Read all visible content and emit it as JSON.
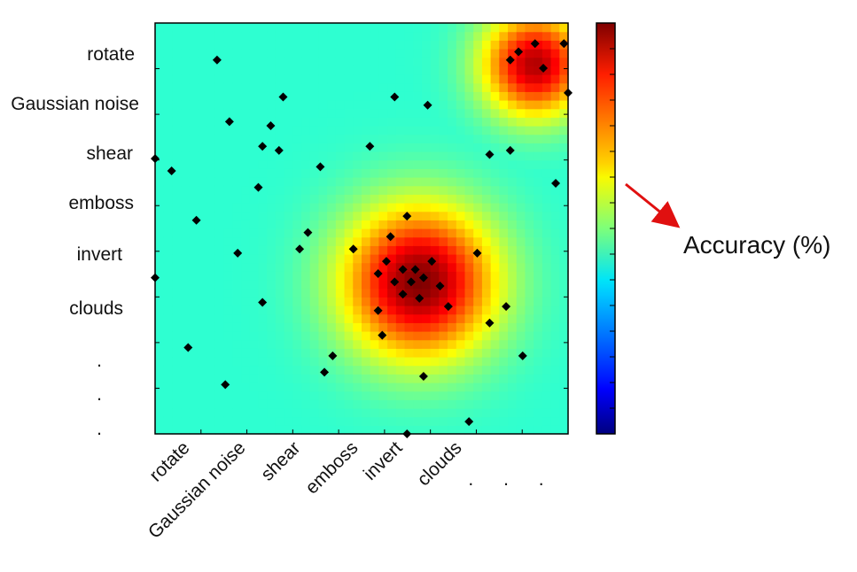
{
  "chart_data": {
    "type": "heatmap",
    "title": "",
    "x_tick_labels": [
      "rotate",
      "Gaussian noise",
      "shear",
      "emboss",
      "invert",
      "clouds",
      ". . ."
    ],
    "y_tick_labels": [
      "rotate",
      "Gaussian noise",
      "shear",
      "emboss",
      "invert",
      "clouds",
      "."
    ],
    "colorbar": {
      "label": "Accuracy (%)",
      "colormap": "jet",
      "tick_count": 16
    },
    "x_range": [
      0,
      1
    ],
    "y_range": [
      0,
      1
    ],
    "value_range": [
      0,
      1
    ],
    "peaks": [
      {
        "x": 0.64,
        "y": 0.37,
        "value": 1.0,
        "spread": 0.13
      },
      {
        "x": 0.92,
        "y": 0.9,
        "value": 0.95,
        "spread": 0.09
      }
    ],
    "grid": false,
    "points": [
      [
        0.76,
        0.03
      ],
      [
        0.61,
        0.0
      ],
      [
        0.17,
        0.12
      ],
      [
        0.43,
        0.19
      ],
      [
        0.08,
        0.21
      ],
      [
        0.26,
        0.32
      ],
      [
        0.55,
        0.24
      ],
      [
        0.65,
        0.14
      ],
      [
        0.81,
        0.27
      ],
      [
        0.41,
        0.15
      ],
      [
        0.35,
        0.45
      ],
      [
        0.28,
        0.75
      ],
      [
        0.37,
        0.49
      ],
      [
        0.2,
        0.44
      ],
      [
        0.48,
        0.45
      ],
      [
        0.54,
        0.39
      ],
      [
        0.58,
        0.37
      ],
      [
        0.6,
        0.4
      ],
      [
        0.62,
        0.37
      ],
      [
        0.63,
        0.4
      ],
      [
        0.65,
        0.38
      ],
      [
        0.67,
        0.42
      ],
      [
        0.69,
        0.36
      ],
      [
        0.64,
        0.33
      ],
      [
        0.56,
        0.42
      ],
      [
        0.6,
        0.34
      ],
      [
        0.54,
        0.3
      ],
      [
        0.71,
        0.31
      ],
      [
        0.78,
        0.44
      ],
      [
        0.57,
        0.48
      ],
      [
        0.85,
        0.31
      ],
      [
        0.89,
        0.19
      ],
      [
        0.61,
        0.53
      ],
      [
        0.81,
        0.68
      ],
      [
        0.66,
        0.8
      ],
      [
        0.86,
        0.69
      ],
      [
        0.04,
        0.64
      ],
      [
        0.15,
        0.91
      ],
      [
        0.18,
        0.76
      ],
      [
        0.31,
        0.82
      ],
      [
        0.3,
        0.69
      ],
      [
        0.26,
        0.7
      ],
      [
        0.4,
        0.65
      ],
      [
        0.58,
        0.82
      ],
      [
        0.52,
        0.7
      ],
      [
        0.0,
        0.67
      ],
      [
        0.97,
        0.61
      ],
      [
        1.0,
        0.83
      ],
      [
        0.88,
        0.93
      ],
      [
        0.92,
        0.95
      ],
      [
        0.94,
        0.89
      ],
      [
        0.86,
        0.91
      ],
      [
        0.99,
        0.95
      ],
      [
        0.25,
        0.6
      ],
      [
        0.1,
        0.52
      ],
      [
        0.0,
        0.38
      ]
    ]
  },
  "legend": {
    "arrow_color": "#e01010"
  }
}
